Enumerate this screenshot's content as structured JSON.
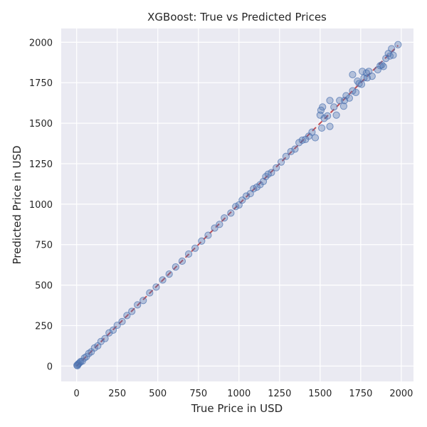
{
  "chart_data": {
    "type": "scatter",
    "title": "XGBoost: True vs Predicted Prices",
    "xlabel": "True Price in USD",
    "ylabel": "Predicted Price in USD",
    "xlim": [
      -95,
      2075
    ],
    "ylim": [
      -95,
      2085
    ],
    "xticks": [
      0,
      250,
      500,
      750,
      1000,
      1250,
      1500,
      1750,
      2000
    ],
    "yticks": [
      0,
      250,
      500,
      750,
      1000,
      1250,
      1500,
      1750,
      2000
    ],
    "grid": true,
    "reference_line": {
      "style": "dashed",
      "from": [
        0,
        0
      ],
      "to": [
        1980,
        1980
      ]
    },
    "colors": {
      "points": "#4c72b0",
      "reference": "#c44e52",
      "background": "#eaeaf2"
    },
    "points": {
      "x": [
        2,
        5,
        8,
        12,
        18,
        25,
        35,
        48,
        60,
        75,
        90,
        110,
        130,
        150,
        175,
        200,
        225,
        250,
        280,
        310,
        340,
        375,
        410,
        450,
        490,
        530,
        570,
        610,
        650,
        690,
        730,
        770,
        810,
        850,
        880,
        910,
        950,
        980,
        1000,
        1020,
        1045,
        1070,
        1090,
        1110,
        1130,
        1150,
        1165,
        1180,
        1200,
        1230,
        1260,
        1290,
        1320,
        1345,
        1370,
        1390,
        1410,
        1430,
        1450,
        1470,
        1500,
        1505,
        1515,
        1525,
        1545,
        1560,
        1585,
        1600,
        1620,
        1645,
        1660,
        1680,
        1700,
        1720,
        1730,
        1740,
        1755,
        1770,
        1785,
        1800,
        1820,
        1855,
        1870,
        1890,
        1905,
        1920,
        1930,
        1940,
        1950,
        1980,
        1510,
        1560,
        1650,
        1700,
        1760,
        1790,
        1880
      ],
      "y": [
        5,
        2,
        10,
        15,
        20,
        28,
        30,
        50,
        58,
        78,
        88,
        112,
        125,
        152,
        170,
        205,
        222,
        252,
        275,
        312,
        338,
        378,
        405,
        452,
        488,
        532,
        568,
        612,
        648,
        692,
        728,
        772,
        808,
        852,
        875,
        915,
        945,
        985,
        995,
        1025,
        1050,
        1065,
        1095,
        1105,
        1120,
        1140,
        1170,
        1185,
        1195,
        1225,
        1260,
        1295,
        1325,
        1340,
        1380,
        1395,
        1400,
        1420,
        1445,
        1410,
        1550,
        1580,
        1600,
        1530,
        1545,
        1640,
        1600,
        1550,
        1640,
        1605,
        1670,
        1655,
        1700,
        1690,
        1760,
        1745,
        1740,
        1780,
        1810,
        1820,
        1790,
        1830,
        1855,
        1850,
        1900,
        1930,
        1915,
        1960,
        1920,
        1985,
        1470,
        1480,
        1640,
        1800,
        1820,
        1780,
        1860
      ]
    }
  }
}
